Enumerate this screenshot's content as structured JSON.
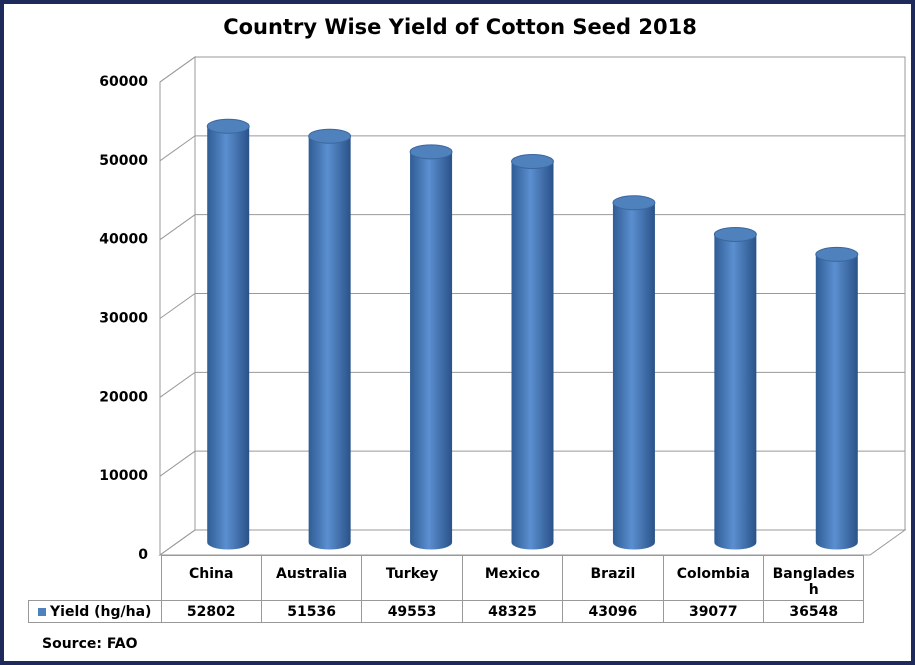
{
  "chart_data": {
    "type": "bar",
    "title": "Country Wise Yield of Cotton Seed 2018",
    "categories": [
      "China",
      "Australia",
      "Turkey",
      "Mexico",
      "Brazil",
      "Colombia",
      "Bangladesh"
    ],
    "series": [
      {
        "name": "Yield (hg/ha)",
        "color": "#4f81bd",
        "values": [
          52802,
          51536,
          49553,
          48325,
          43096,
          39077,
          36548
        ]
      }
    ],
    "ylim": [
      0,
      60000
    ],
    "yticks": [
      0,
      10000,
      20000,
      30000,
      40000,
      50000,
      60000
    ],
    "grid": true,
    "source": "Source: FAO"
  }
}
